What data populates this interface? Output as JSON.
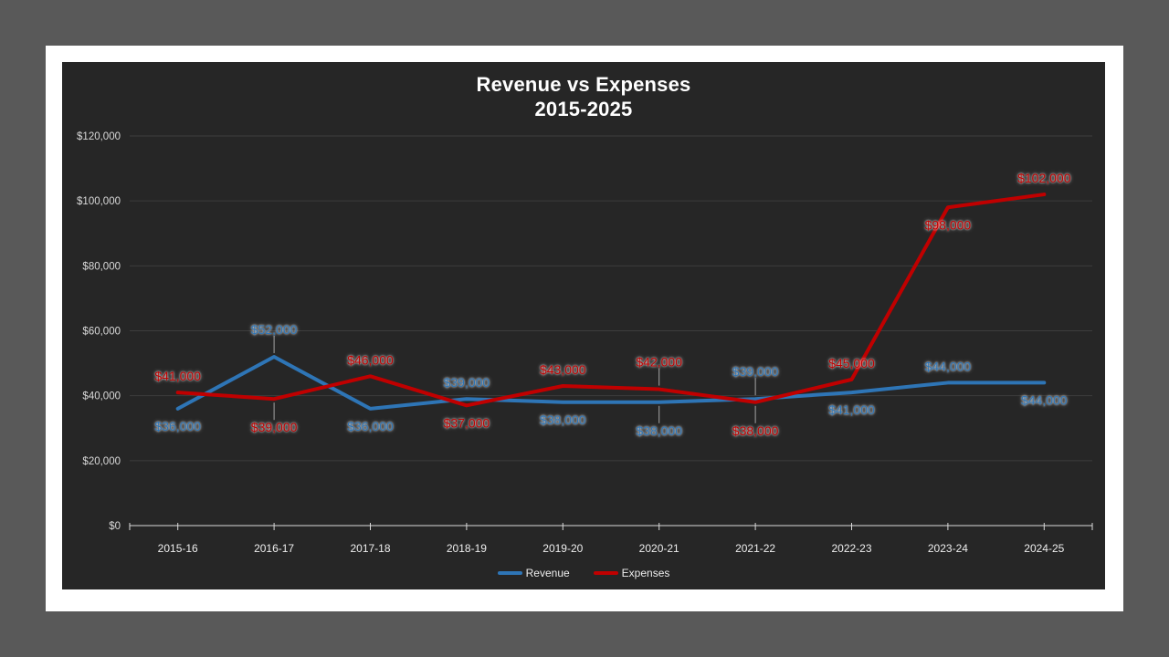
{
  "window": {
    "outer_background": "#595959",
    "slide_background": "#FFFFFF"
  },
  "chart_data": {
    "type": "line",
    "title": "Revenue vs Expenses",
    "subtitle": "2015-2025",
    "categories": [
      "2015-16",
      "2016-17",
      "2017-18",
      "2018-19",
      "2019-20",
      "2020-21",
      "2021-22",
      "2022-23",
      "2023-24",
      "2024-25"
    ],
    "series": [
      {
        "name": "Revenue",
        "color": "#2E75B6",
        "values": [
          36000,
          52000,
          36000,
          39000,
          38000,
          38000,
          39000,
          41000,
          44000,
          44000
        ],
        "labels": [
          "$36,000",
          "$52,000",
          "$36,000",
          "$39,000",
          "$38,000",
          "$38,000",
          "$39,000",
          "$41,000",
          "$44,000",
          "$44,000"
        ],
        "label_placement": [
          "below",
          "above-far",
          "below",
          "above",
          "below",
          "below-far",
          "above-far",
          "below",
          "above",
          "below"
        ]
      },
      {
        "name": "Expenses",
        "color": "#C00000",
        "values": [
          41000,
          39000,
          46000,
          37000,
          43000,
          42000,
          38000,
          45000,
          98000,
          102000
        ],
        "labels": [
          "$41,000",
          "$39,000",
          "$46,000",
          "$37,000",
          "$43,000",
          "$42,000",
          "$38,000",
          "$45,000",
          "$98,000",
          "$102,000"
        ],
        "label_placement": [
          "above",
          "below-far",
          "above",
          "below",
          "above",
          "above-far",
          "below-far",
          "above",
          "below",
          "above"
        ]
      }
    ],
    "y_axis": {
      "min": 0,
      "max": 120000,
      "step": 20000,
      "tick_labels": [
        "$0",
        "$20,000",
        "$40,000",
        "$60,000",
        "$80,000",
        "$100,000",
        "$120,000"
      ]
    },
    "legend": {
      "position": "bottom"
    },
    "grid": true,
    "colors": {
      "chart_background": "#262626",
      "gridline": "#3D3D3D",
      "axis_line": "#D9D9D9",
      "axis_text": "#D9D9D9",
      "title_text": "#FFFFFF",
      "leader_line": "#A6A6A6",
      "legend_text": "#EDEDED"
    }
  }
}
